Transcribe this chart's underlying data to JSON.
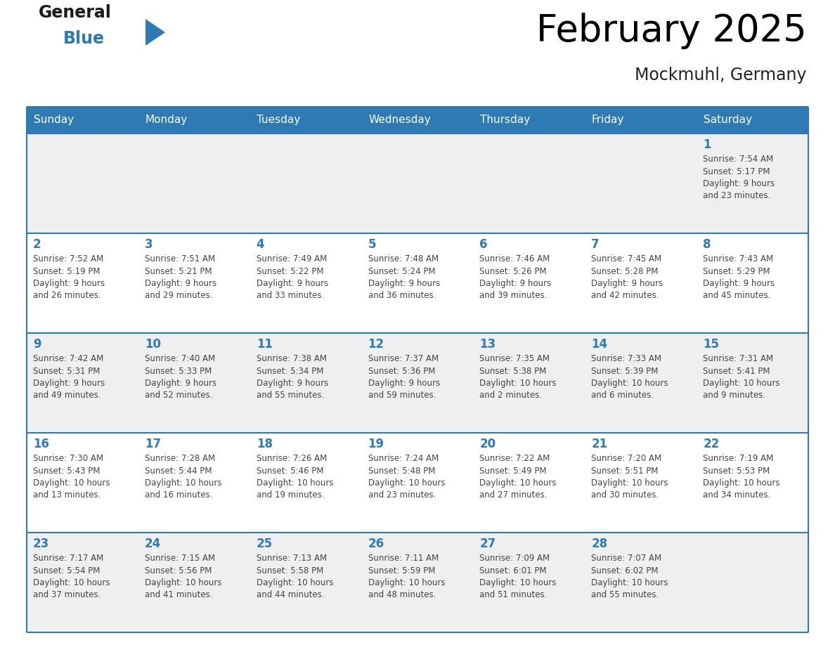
{
  "title": "February 2025",
  "subtitle": "Mockmuhl, Germany",
  "header_bg_color": "#2e7ab5",
  "header_text_color": "#ffffff",
  "day_headers": [
    "Sunday",
    "Monday",
    "Tuesday",
    "Wednesday",
    "Thursday",
    "Friday",
    "Saturday"
  ],
  "odd_row_bg": "#efefef",
  "even_row_bg": "#ffffff",
  "cell_border_color": "#2e7ab5",
  "day_number_color": "#2e7ab5",
  "info_text_color": "#444444",
  "logo_triangle_color": "#2e7ab5",
  "calendar_data": [
    [
      null,
      null,
      null,
      null,
      null,
      null,
      {
        "day": 1,
        "sunrise": "7:54 AM",
        "sunset": "5:17 PM",
        "daylight": "9 hours\nand 23 minutes."
      }
    ],
    [
      {
        "day": 2,
        "sunrise": "7:52 AM",
        "sunset": "5:19 PM",
        "daylight": "9 hours\nand 26 minutes."
      },
      {
        "day": 3,
        "sunrise": "7:51 AM",
        "sunset": "5:21 PM",
        "daylight": "9 hours\nand 29 minutes."
      },
      {
        "day": 4,
        "sunrise": "7:49 AM",
        "sunset": "5:22 PM",
        "daylight": "9 hours\nand 33 minutes."
      },
      {
        "day": 5,
        "sunrise": "7:48 AM",
        "sunset": "5:24 PM",
        "daylight": "9 hours\nand 36 minutes."
      },
      {
        "day": 6,
        "sunrise": "7:46 AM",
        "sunset": "5:26 PM",
        "daylight": "9 hours\nand 39 minutes."
      },
      {
        "day": 7,
        "sunrise": "7:45 AM",
        "sunset": "5:28 PM",
        "daylight": "9 hours\nand 42 minutes."
      },
      {
        "day": 8,
        "sunrise": "7:43 AM",
        "sunset": "5:29 PM",
        "daylight": "9 hours\nand 45 minutes."
      }
    ],
    [
      {
        "day": 9,
        "sunrise": "7:42 AM",
        "sunset": "5:31 PM",
        "daylight": "9 hours\nand 49 minutes."
      },
      {
        "day": 10,
        "sunrise": "7:40 AM",
        "sunset": "5:33 PM",
        "daylight": "9 hours\nand 52 minutes."
      },
      {
        "day": 11,
        "sunrise": "7:38 AM",
        "sunset": "5:34 PM",
        "daylight": "9 hours\nand 55 minutes."
      },
      {
        "day": 12,
        "sunrise": "7:37 AM",
        "sunset": "5:36 PM",
        "daylight": "9 hours\nand 59 minutes."
      },
      {
        "day": 13,
        "sunrise": "7:35 AM",
        "sunset": "5:38 PM",
        "daylight": "10 hours\nand 2 minutes."
      },
      {
        "day": 14,
        "sunrise": "7:33 AM",
        "sunset": "5:39 PM",
        "daylight": "10 hours\nand 6 minutes."
      },
      {
        "day": 15,
        "sunrise": "7:31 AM",
        "sunset": "5:41 PM",
        "daylight": "10 hours\nand 9 minutes."
      }
    ],
    [
      {
        "day": 16,
        "sunrise": "7:30 AM",
        "sunset": "5:43 PM",
        "daylight": "10 hours\nand 13 minutes."
      },
      {
        "day": 17,
        "sunrise": "7:28 AM",
        "sunset": "5:44 PM",
        "daylight": "10 hours\nand 16 minutes."
      },
      {
        "day": 18,
        "sunrise": "7:26 AM",
        "sunset": "5:46 PM",
        "daylight": "10 hours\nand 19 minutes."
      },
      {
        "day": 19,
        "sunrise": "7:24 AM",
        "sunset": "5:48 PM",
        "daylight": "10 hours\nand 23 minutes."
      },
      {
        "day": 20,
        "sunrise": "7:22 AM",
        "sunset": "5:49 PM",
        "daylight": "10 hours\nand 27 minutes."
      },
      {
        "day": 21,
        "sunrise": "7:20 AM",
        "sunset": "5:51 PM",
        "daylight": "10 hours\nand 30 minutes."
      },
      {
        "day": 22,
        "sunrise": "7:19 AM",
        "sunset": "5:53 PM",
        "daylight": "10 hours\nand 34 minutes."
      }
    ],
    [
      {
        "day": 23,
        "sunrise": "7:17 AM",
        "sunset": "5:54 PM",
        "daylight": "10 hours\nand 37 minutes."
      },
      {
        "day": 24,
        "sunrise": "7:15 AM",
        "sunset": "5:56 PM",
        "daylight": "10 hours\nand 41 minutes."
      },
      {
        "day": 25,
        "sunrise": "7:13 AM",
        "sunset": "5:58 PM",
        "daylight": "10 hours\nand 44 minutes."
      },
      {
        "day": 26,
        "sunrise": "7:11 AM",
        "sunset": "5:59 PM",
        "daylight": "10 hours\nand 48 minutes."
      },
      {
        "day": 27,
        "sunrise": "7:09 AM",
        "sunset": "6:01 PM",
        "daylight": "10 hours\nand 51 minutes."
      },
      {
        "day": 28,
        "sunrise": "7:07 AM",
        "sunset": "6:02 PM",
        "daylight": "10 hours\nand 55 minutes."
      },
      null
    ]
  ]
}
